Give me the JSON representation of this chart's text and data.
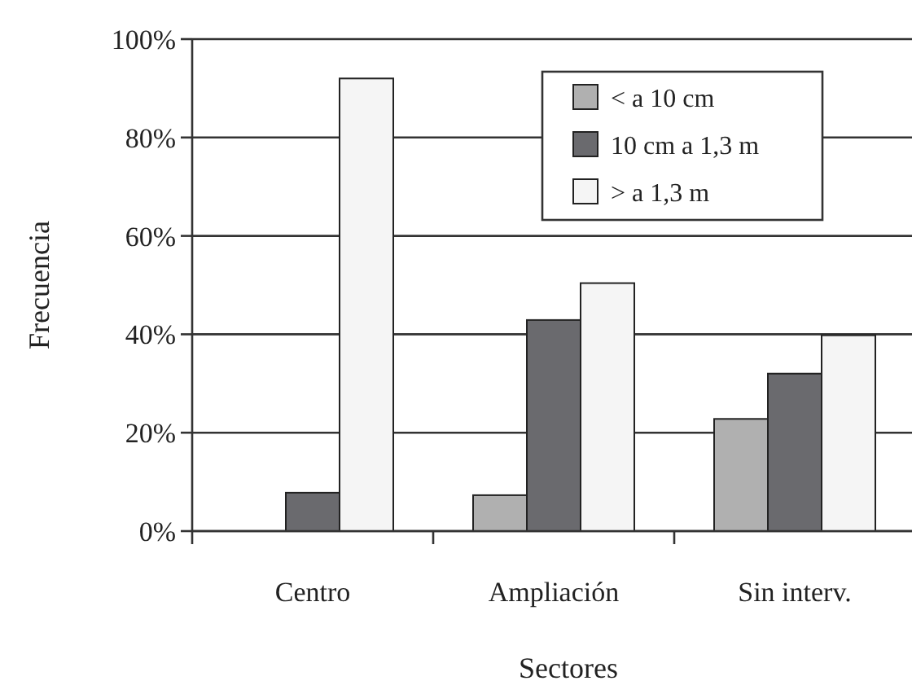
{
  "chart_data": {
    "type": "bar",
    "xlabel": "Sectores",
    "ylabel": "Frecuencia",
    "categories": [
      "Centro",
      "Ampliación",
      "Sin interv."
    ],
    "series": [
      {
        "name": "< a 10 cm",
        "color": "#b0b0b0",
        "values": [
          0,
          7.3,
          22.8
        ]
      },
      {
        "name": "10 cm a 1,3 m",
        "color": "#6a6a6e",
        "values": [
          7.8,
          42.9,
          32
        ]
      },
      {
        "name": "> a 1,3 m",
        "color": "#f5f5f5",
        "values": [
          92,
          50.4,
          39.8
        ]
      }
    ],
    "ylim": [
      0,
      100
    ],
    "yticks": [
      {
        "value": 0,
        "label": "0%"
      },
      {
        "value": 20,
        "label": "20%"
      },
      {
        "value": 40,
        "label": "40%"
      },
      {
        "value": 60,
        "label": "60%"
      },
      {
        "value": 80,
        "label": "80%"
      },
      {
        "value": 100,
        "label": "100%"
      }
    ],
    "grid": "y",
    "legend": "top right"
  }
}
